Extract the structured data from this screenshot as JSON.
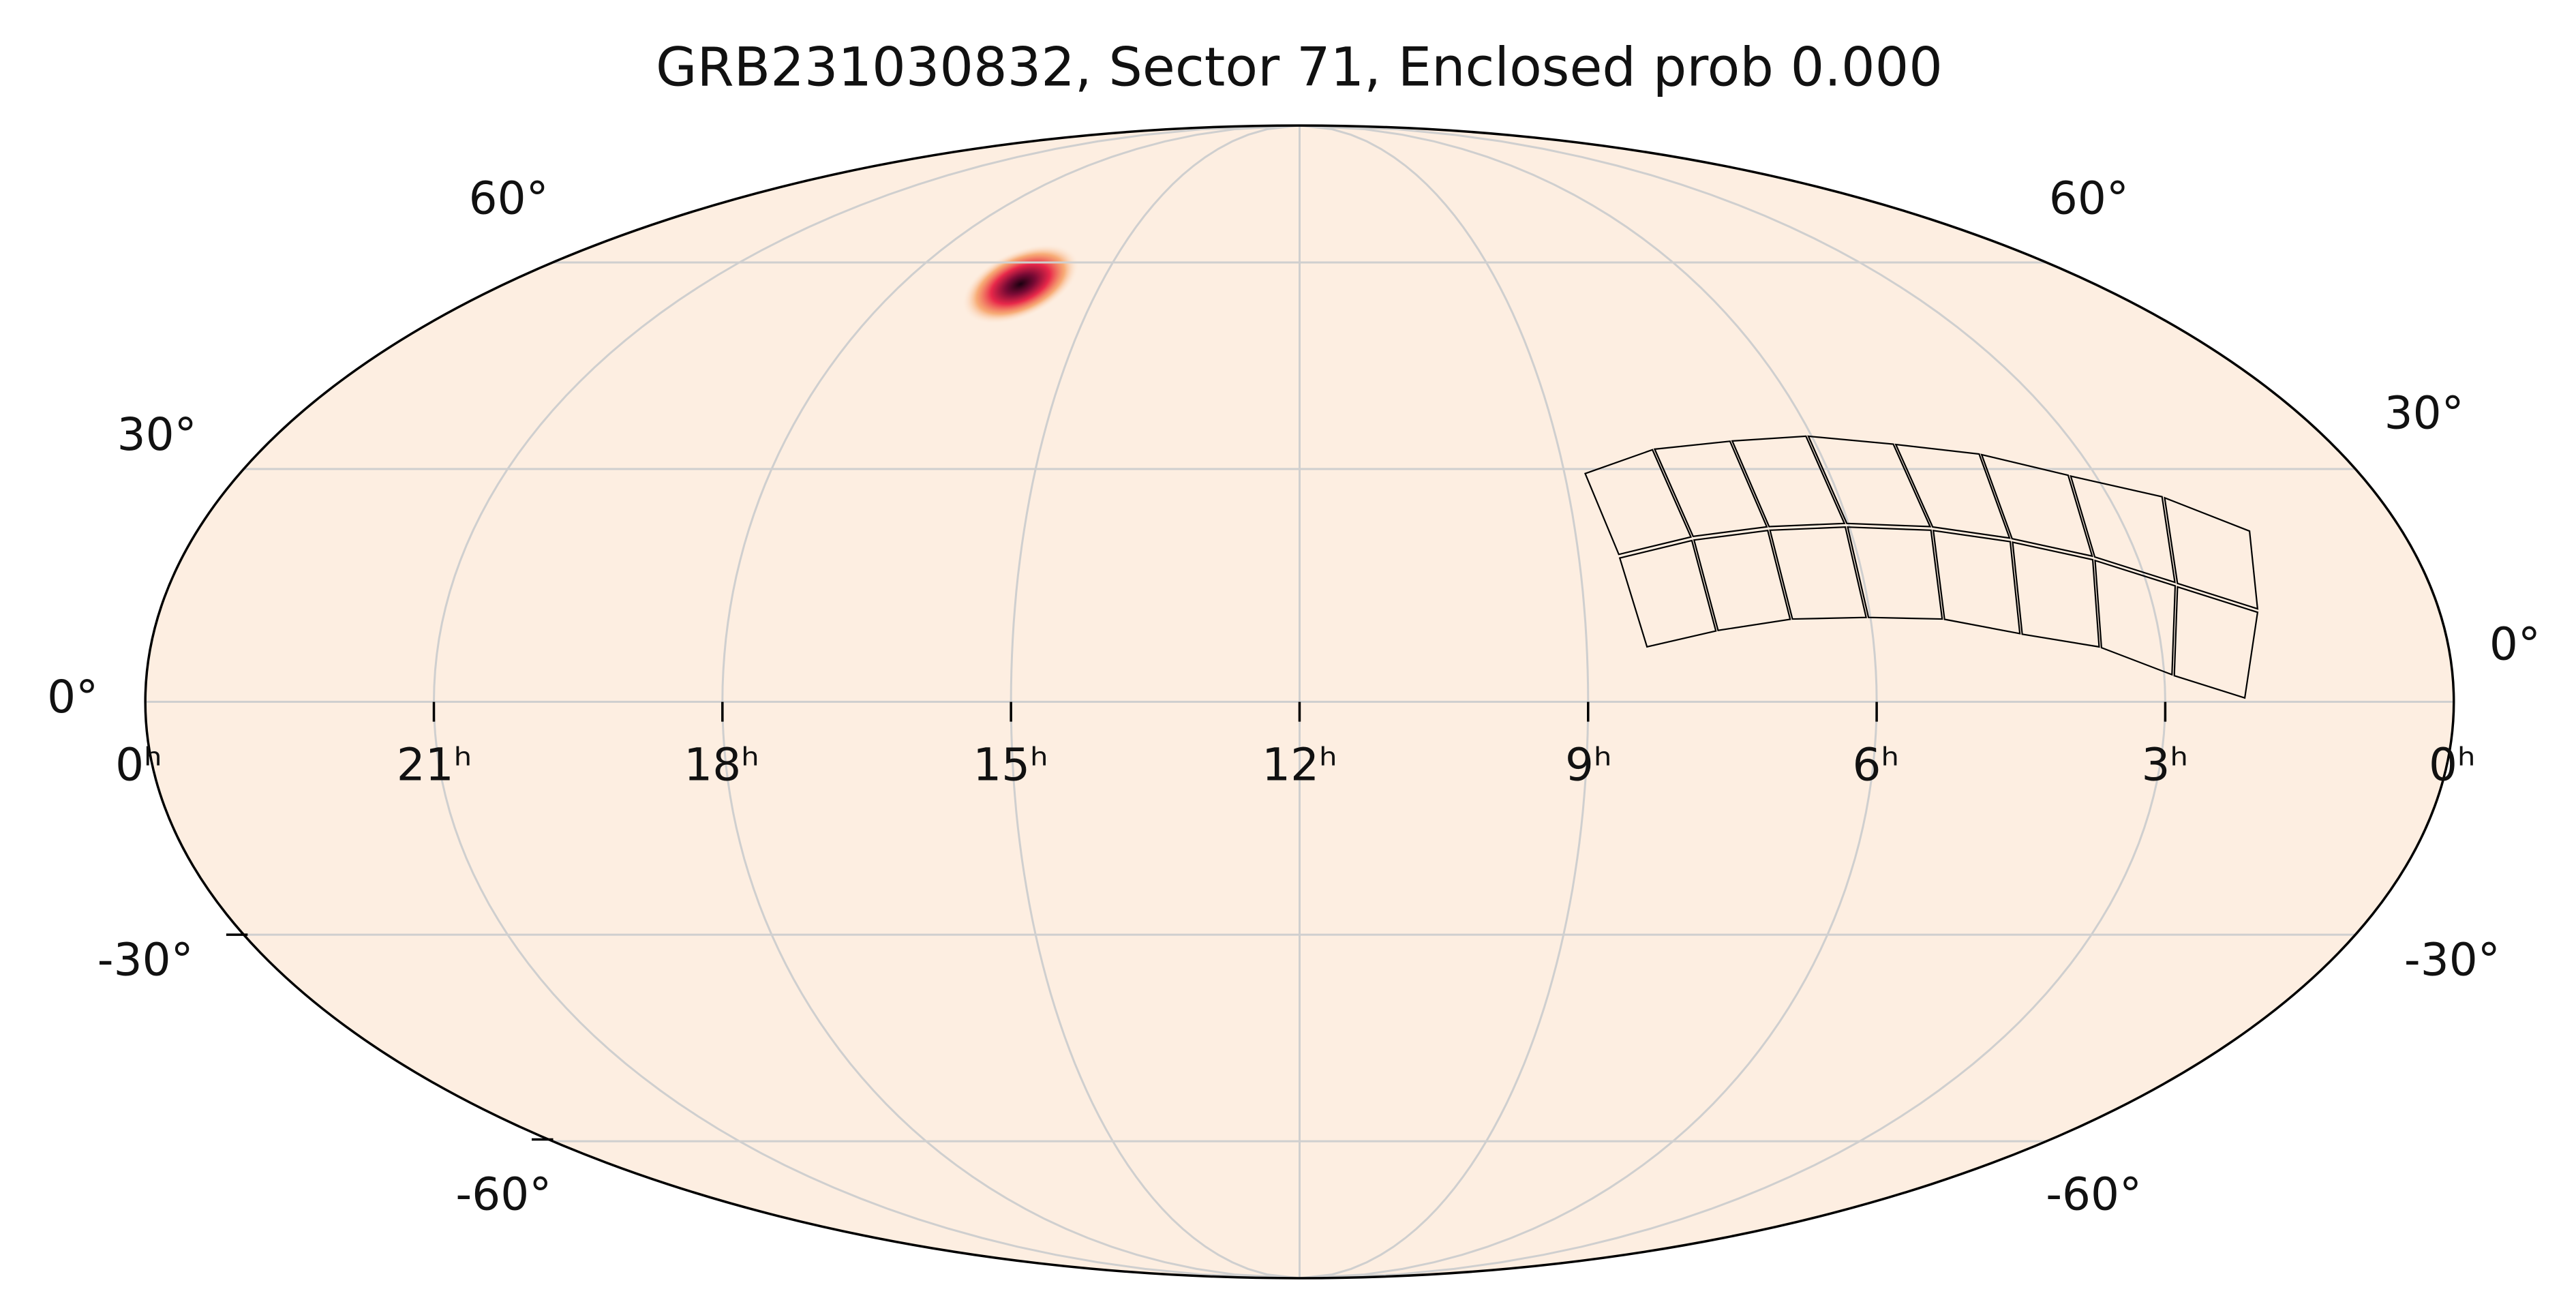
{
  "title": "GRB231030832, Sector 71, Enclosed prob 0.000",
  "ra_labels": [
    "0ʰ",
    "21ʰ",
    "18ʰ",
    "15ʰ",
    "12ʰ",
    "9ʰ",
    "6ʰ",
    "3ʰ",
    "0ʰ"
  ],
  "dec_labels_left": [
    "60°",
    "30°",
    "0°",
    "-30°",
    "-60°"
  ],
  "dec_labels_right": [
    "60°",
    "30°",
    "0°",
    "-30°",
    "-60°"
  ]
}
